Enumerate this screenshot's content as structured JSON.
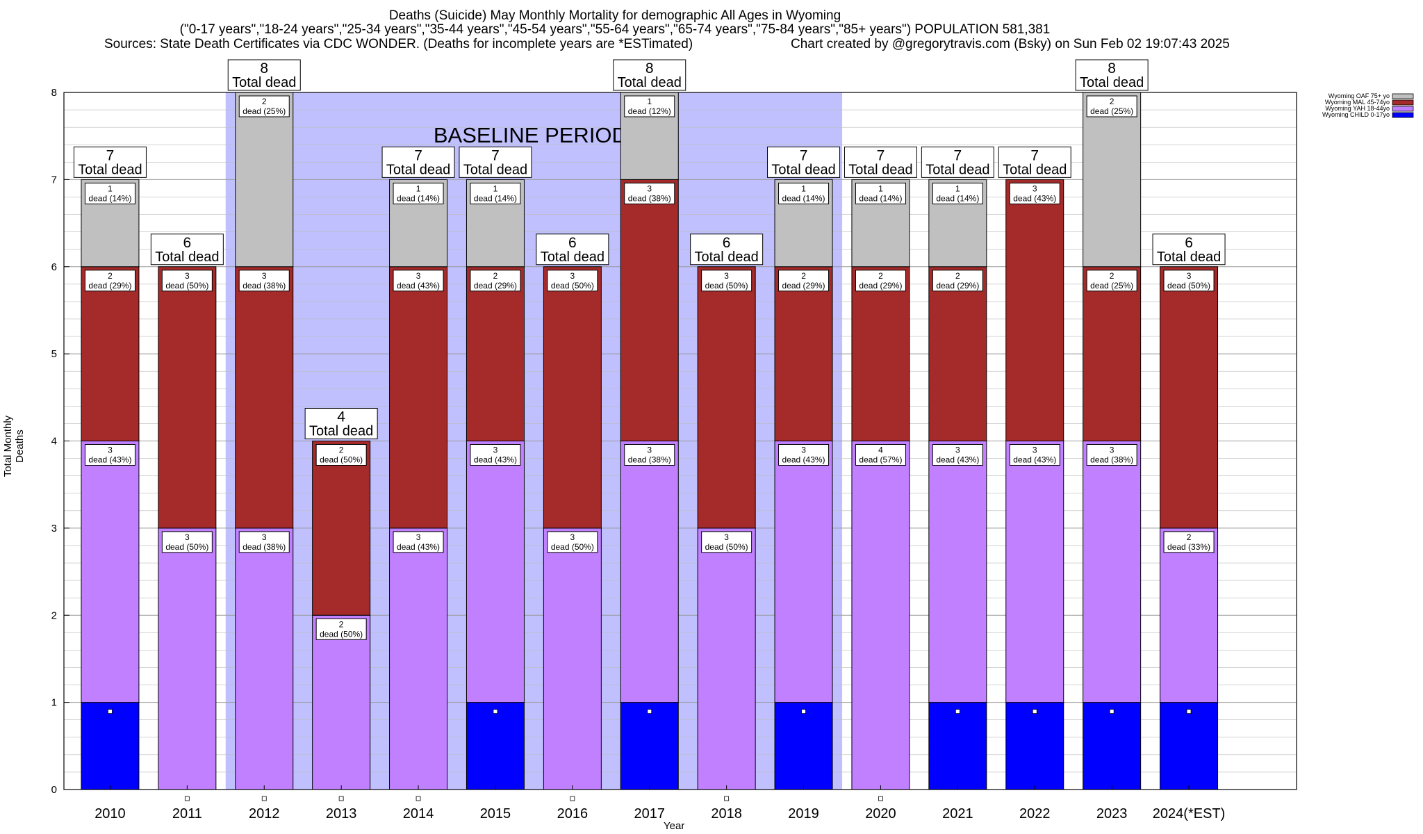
{
  "title": {
    "line1": "Deaths (Suicide) May Monthly Mortality for demographic All Ages in Wyoming",
    "line2": "(\"0-17 years\",\"18-24 years\",\"25-34 years\",\"35-44 years\",\"45-54 years\",\"55-64 years\",\"65-74 years\",\"75-84 years\",\"85+ years\") POPULATION 581,381",
    "sources": "Sources: State Death Certificates via CDC WONDER. (Deaths for incomplete years are *ESTimated)",
    "credit": "Chart created by @gregorytravis.com (Bsky) on Sun Feb 02 19:07:43 2025"
  },
  "chart_data": {
    "type": "bar",
    "stacked": true,
    "xlabel": "Year",
    "ylabel": "Total Monthly Deaths",
    "ylim": [
      0,
      8
    ],
    "yticks": [
      "0",
      "1",
      "2",
      "3",
      "4",
      "5",
      "6",
      "7",
      "8"
    ],
    "categories": [
      "2010",
      "2011",
      "2012",
      "2013",
      "2014",
      "2015",
      "2016",
      "2017",
      "2018",
      "2019",
      "2020",
      "2021",
      "2022",
      "2023",
      "2024(*EST)"
    ],
    "series": [
      {
        "name": "Wyoming CHILD 0-17yo",
        "color": "#0000ff",
        "values": [
          1,
          0,
          0,
          0,
          0,
          1,
          0,
          1,
          0,
          1,
          0,
          1,
          1,
          1,
          1
        ]
      },
      {
        "name": "Wyoming YAH 18-44yo",
        "color": "#c080ff",
        "values": [
          3,
          3,
          3,
          2,
          3,
          3,
          3,
          3,
          3,
          3,
          4,
          3,
          3,
          3,
          2
        ]
      },
      {
        "name": "Wyoming MAL 45-74yo",
        "color": "#a52a2a",
        "values": [
          2,
          3,
          3,
          2,
          3,
          2,
          3,
          3,
          3,
          2,
          2,
          2,
          3,
          2,
          3
        ]
      },
      {
        "name": "Wyoming OAF 75+ yo",
        "color": "#c0c0c0",
        "values": [
          1,
          0,
          2,
          0,
          1,
          1,
          0,
          1,
          0,
          1,
          1,
          1,
          0,
          2,
          0
        ]
      }
    ],
    "segment_labels": {
      "Wyoming YAH 18-44yo": [
        "3\ndead (43%)",
        "3\ndead (50%)",
        "3\ndead (38%)",
        "2\ndead (50%)",
        "3\ndead (43%)",
        "3\ndead (43%)",
        "3\ndead (50%)",
        "3\ndead (38%)",
        "3\ndead (50%)",
        "3\ndead (43%)",
        "4\ndead (57%)",
        "3\ndead (43%)",
        "3\ndead (43%)",
        "3\ndead (38%)",
        "2\ndead (33%)"
      ],
      "Wyoming MAL 45-74yo": [
        "2\ndead (29%)",
        "3\ndead (50%)",
        "3\ndead (38%)",
        "2\ndead (50%)",
        "3\ndead (43%)",
        "2\ndead (29%)",
        "3\ndead (50%)",
        "3\ndead (38%)",
        "3\ndead (50%)",
        "2\ndead (29%)",
        "2\ndead (29%)",
        "2\ndead (29%)",
        "3\ndead (43%)",
        "2\ndead (25%)",
        "3\ndead (50%)"
      ],
      "Wyoming OAF 75+ yo": [
        "1\ndead (14%)",
        "",
        "2\ndead (25%)",
        "",
        "1\ndead (14%)",
        "1\ndead (14%)",
        "",
        "1\ndead (12%)",
        "",
        "1\ndead (14%)",
        "1\ndead (14%)",
        "1\ndead (14%)",
        "",
        "2\ndead (25%)",
        ""
      ]
    },
    "totals": [
      7,
      6,
      8,
      4,
      7,
      7,
      6,
      8,
      6,
      7,
      7,
      7,
      7,
      8,
      6
    ],
    "total_label": "Total dead",
    "baseline": {
      "label": "BASELINE PERIOD",
      "start": "2012",
      "end": "2019",
      "color": "#c0c0ff"
    },
    "grid": true,
    "legend_position": "top-right"
  }
}
